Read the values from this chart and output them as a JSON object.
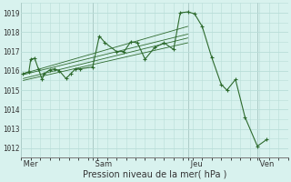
{
  "bg_color": "#d8f2ee",
  "grid_color": "#b8ddd8",
  "line_color": "#2d6a2d",
  "xlabel": "Pression niveau de la mer( hPa )",
  "ylim": [
    1011.5,
    1019.5
  ],
  "yticks": [
    1012,
    1013,
    1014,
    1015,
    1016,
    1017,
    1018,
    1019
  ],
  "day_labels": [
    " Mer",
    " Sam",
    " Jeu",
    " Ven"
  ],
  "day_positions": [
    0,
    75,
    175,
    248
  ],
  "vline_positions": [
    0,
    75,
    175,
    248
  ],
  "xlim": [
    0,
    280
  ],
  "series": [
    [
      2,
      1015.85
    ],
    [
      8,
      1015.95
    ],
    [
      10,
      1016.6
    ],
    [
      14,
      1016.65
    ],
    [
      18,
      1016.1
    ],
    [
      22,
      1015.55
    ],
    [
      24,
      1015.85
    ],
    [
      30,
      1016.05
    ],
    [
      35,
      1016.1
    ],
    [
      40,
      1016.0
    ],
    [
      47,
      1015.6
    ],
    [
      52,
      1015.85
    ],
    [
      57,
      1016.1
    ],
    [
      62,
      1016.1
    ],
    [
      75,
      1016.2
    ],
    [
      82,
      1017.8
    ],
    [
      88,
      1017.45
    ],
    [
      100,
      1017.0
    ],
    [
      108,
      1017.0
    ],
    [
      115,
      1017.5
    ],
    [
      122,
      1017.45
    ],
    [
      130,
      1016.6
    ],
    [
      140,
      1017.2
    ],
    [
      150,
      1017.45
    ],
    [
      160,
      1017.1
    ],
    [
      167,
      1019.0
    ],
    [
      175,
      1019.05
    ],
    [
      182,
      1018.95
    ],
    [
      190,
      1018.3
    ],
    [
      200,
      1016.7
    ],
    [
      210,
      1015.3
    ],
    [
      216,
      1015.0
    ],
    [
      225,
      1015.55
    ],
    [
      235,
      1013.6
    ],
    [
      248,
      1012.1
    ],
    [
      258,
      1012.45
    ]
  ],
  "trend_lines": [
    {
      "x": [
        2,
        175
      ],
      "y": [
        1015.85,
        1018.3
      ]
    },
    {
      "x": [
        2,
        175
      ],
      "y": [
        1015.8,
        1017.9
      ]
    },
    {
      "x": [
        2,
        175
      ],
      "y": [
        1015.6,
        1017.7
      ]
    },
    {
      "x": [
        2,
        175
      ],
      "y": [
        1015.5,
        1017.45
      ]
    }
  ]
}
